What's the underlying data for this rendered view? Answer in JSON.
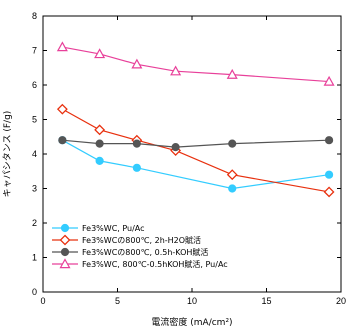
{
  "chart_data": {
    "type": "line",
    "title": "",
    "xlabel": "電流密度 (mA/cm²)",
    "ylabel": "キャパシタンス (F/g)",
    "xlim": [
      0,
      20
    ],
    "ylim": [
      0,
      8
    ],
    "xticks": [
      0,
      5,
      10,
      15,
      20
    ],
    "yticks": [
      0,
      1,
      2,
      3,
      4,
      5,
      6,
      7,
      8
    ],
    "grid": false,
    "legend_position": "bottom-left",
    "series": [
      {
        "name": "Fe3%WC, Pu/Ac",
        "color": "#33ccff",
        "marker": "circle-filled",
        "x": [
          1.3,
          3.8,
          6.3,
          12.7,
          19.2
        ],
        "y": [
          4.4,
          3.8,
          3.6,
          3.0,
          3.4
        ]
      },
      {
        "name": "Fe3%WCの800℃, 2h-H2O賦活",
        "color": "#e8300e",
        "marker": "diamond-open",
        "x": [
          1.3,
          3.8,
          6.3,
          8.9,
          12.7,
          19.2
        ],
        "y": [
          5.3,
          4.7,
          4.4,
          4.1,
          3.4,
          2.9
        ]
      },
      {
        "name": "Fe3%WCの800℃, 0.5h-KOH賦活",
        "color": "#555555",
        "marker": "circle-filled",
        "x": [
          1.3,
          3.8,
          6.3,
          8.9,
          12.7,
          19.2
        ],
        "y": [
          4.4,
          4.3,
          4.3,
          4.2,
          4.3,
          4.4
        ]
      },
      {
        "name": "Fe3%WC, 800℃-0.5hKOH賦活, Pu/Ac",
        "color": "#e8409a",
        "marker": "triangle-open",
        "x": [
          1.3,
          3.8,
          6.3,
          8.9,
          12.7,
          19.2
        ],
        "y": [
          7.1,
          6.9,
          6.6,
          6.4,
          6.3,
          6.1
        ]
      }
    ]
  }
}
